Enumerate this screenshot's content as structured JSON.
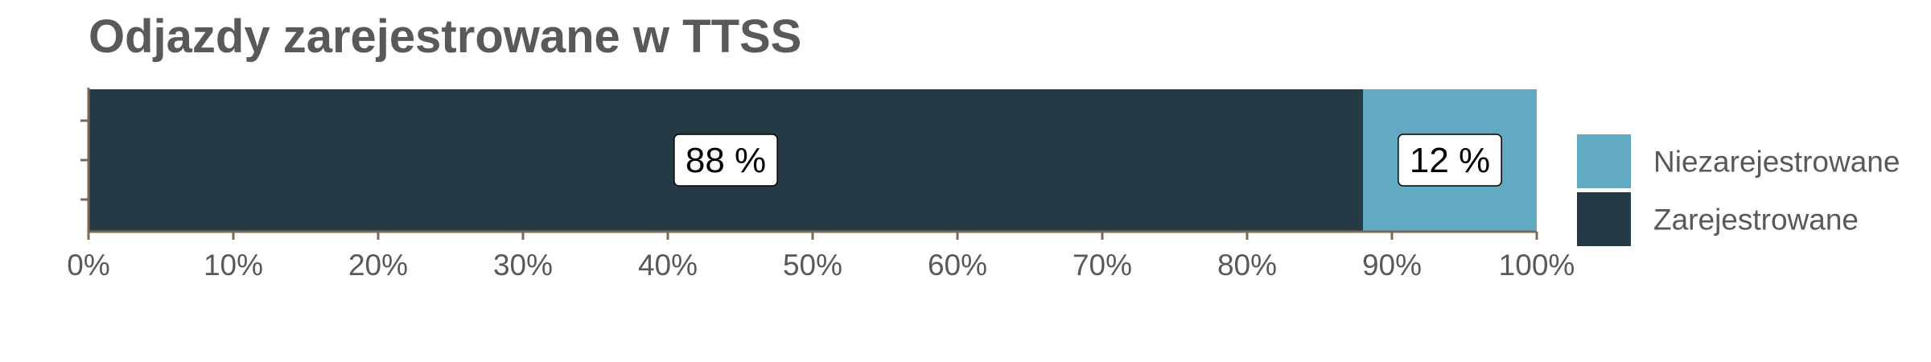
{
  "chart_data": {
    "type": "bar",
    "orientation": "horizontal",
    "stacked": true,
    "title": "Odjazdy zarejestrowane w TTSS",
    "xlabel": "",
    "ylabel": "",
    "xlim": [
      0,
      100
    ],
    "x_ticks": [
      "0%",
      "10%",
      "20%",
      "30%",
      "40%",
      "50%",
      "60%",
      "70%",
      "80%",
      "90%",
      "100%"
    ],
    "categories": [
      ""
    ],
    "series": [
      {
        "name": "Zarejestrowane",
        "values": [
          88
        ],
        "label": "88 %",
        "color": "#243b45"
      },
      {
        "name": "Niezarejestrowane",
        "values": [
          12
        ],
        "label": "12 %",
        "color": "#62aac1"
      }
    ],
    "legend": {
      "position": "right",
      "order": [
        "Niezarejestrowane",
        "Zarejestrowane"
      ]
    },
    "grid": false,
    "axis_color": "#7a6a58"
  }
}
